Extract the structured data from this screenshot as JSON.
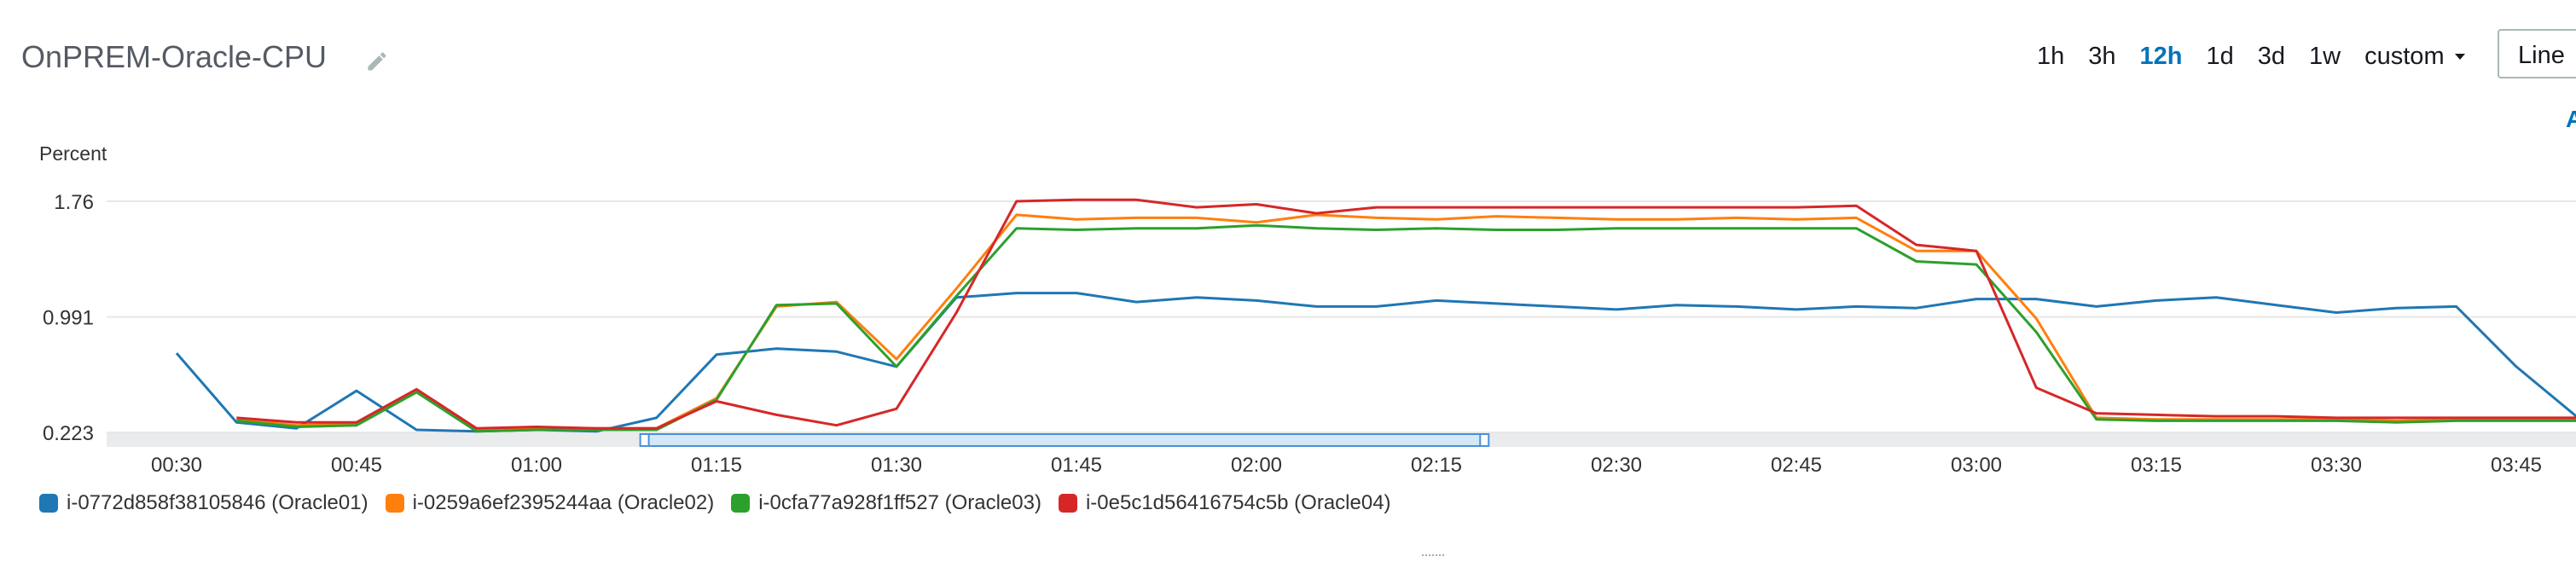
{
  "header": {
    "title": "OnPREM-Oracle-CPU",
    "time_ranges": [
      "1h",
      "3h",
      "12h",
      "1d",
      "3d",
      "1w"
    ],
    "active_range": "12h",
    "custom_label": "custom",
    "chart_type_label": "Line",
    "edge_letter": "A"
  },
  "colors": {
    "oracle01": "#1f77b4",
    "oracle02": "#ff7f0e",
    "oracle03": "#2ca02c",
    "oracle04": "#d62728",
    "accent": "#0073bb"
  },
  "chart_data": {
    "type": "line",
    "ylabel": "Percent",
    "yticks": [
      "1.76",
      "0.991",
      "0.223"
    ],
    "ylim": [
      0.223,
      1.76
    ],
    "x_tick_labels": [
      "00:30",
      "00:45",
      "01:00",
      "01:15",
      "01:30",
      "01:45",
      "02:00",
      "02:15",
      "02:30",
      "02:45",
      "03:00",
      "03:15",
      "03:30",
      "03:45"
    ],
    "x_tick_minutes": [
      30,
      45,
      60,
      75,
      90,
      105,
      120,
      135,
      150,
      165,
      180,
      195,
      210,
      225
    ],
    "xlim_minutes": [
      30,
      230
    ],
    "grid": true,
    "legend_position": "bottom-left",
    "brush_minutes": [
      69,
      139
    ],
    "series": [
      {
        "name": "i-0772d858f38105846 (Oracle01)",
        "x": [
          30,
          35,
          40,
          45,
          50,
          55,
          60,
          65,
          70,
          75,
          80,
          85,
          90,
          95,
          100,
          105,
          110,
          115,
          120,
          125,
          130,
          135,
          140,
          145,
          150,
          155,
          160,
          165,
          170,
          175,
          180,
          185,
          190,
          195,
          200,
          205,
          210,
          215,
          220,
          225,
          230
        ],
        "values": [
          0.75,
          0.29,
          0.25,
          0.5,
          0.24,
          0.23,
          0.24,
          0.23,
          0.32,
          0.74,
          0.78,
          0.76,
          0.66,
          1.12,
          1.15,
          1.15,
          1.09,
          1.12,
          1.1,
          1.06,
          1.06,
          1.1,
          1.08,
          1.06,
          1.04,
          1.07,
          1.06,
          1.04,
          1.06,
          1.05,
          1.11,
          1.11,
          1.06,
          1.1,
          1.12,
          1.07,
          1.02,
          1.05,
          1.06,
          0.66,
          0.33
        ]
      },
      {
        "name": "i-0259a6ef2395244aa (Oracle02)",
        "x": [
          35,
          40,
          45,
          50,
          55,
          60,
          65,
          70,
          75,
          80,
          85,
          90,
          95,
          100,
          105,
          110,
          115,
          120,
          125,
          130,
          135,
          140,
          145,
          150,
          155,
          160,
          165,
          170,
          175,
          180,
          185,
          190,
          195,
          200,
          205,
          210,
          215,
          220,
          225,
          230
        ],
        "values": [
          0.31,
          0.27,
          0.28,
          0.5,
          0.24,
          0.25,
          0.25,
          0.25,
          0.45,
          1.06,
          1.09,
          0.71,
          1.18,
          1.67,
          1.64,
          1.65,
          1.65,
          1.62,
          1.67,
          1.65,
          1.64,
          1.66,
          1.65,
          1.64,
          1.64,
          1.65,
          1.64,
          1.65,
          1.43,
          1.43,
          0.98,
          0.32,
          0.31,
          0.31,
          0.31,
          0.31,
          0.3,
          0.31,
          0.31,
          0.31
        ]
      },
      {
        "name": "i-0cfa77a928f1ff527 (Oracle03)",
        "x": [
          35,
          40,
          45,
          50,
          55,
          60,
          65,
          70,
          75,
          80,
          85,
          90,
          95,
          100,
          105,
          110,
          115,
          120,
          125,
          130,
          135,
          140,
          145,
          150,
          155,
          160,
          165,
          170,
          175,
          180,
          185,
          190,
          195,
          200,
          205,
          210,
          215,
          220,
          225,
          230
        ],
        "values": [
          0.3,
          0.26,
          0.27,
          0.49,
          0.23,
          0.24,
          0.24,
          0.24,
          0.44,
          1.07,
          1.08,
          0.66,
          1.13,
          1.58,
          1.57,
          1.58,
          1.58,
          1.6,
          1.58,
          1.57,
          1.58,
          1.57,
          1.57,
          1.58,
          1.58,
          1.58,
          1.58,
          1.58,
          1.36,
          1.34,
          0.89,
          0.31,
          0.3,
          0.3,
          0.3,
          0.3,
          0.29,
          0.3,
          0.3,
          0.3
        ]
      },
      {
        "name": "i-0e5c1d56416754c5b (Oracle04)",
        "x": [
          35,
          40,
          45,
          50,
          55,
          60,
          65,
          70,
          75,
          80,
          85,
          90,
          95,
          100,
          105,
          110,
          115,
          120,
          125,
          130,
          135,
          140,
          145,
          150,
          155,
          160,
          165,
          170,
          175,
          180,
          185,
          190,
          195,
          200,
          205,
          210,
          215,
          220,
          225,
          230
        ],
        "values": [
          0.32,
          0.29,
          0.29,
          0.51,
          0.25,
          0.26,
          0.25,
          0.25,
          0.43,
          0.34,
          0.27,
          0.38,
          1.02,
          1.76,
          1.77,
          1.77,
          1.72,
          1.74,
          1.68,
          1.72,
          1.72,
          1.72,
          1.72,
          1.72,
          1.72,
          1.72,
          1.72,
          1.73,
          1.47,
          1.43,
          0.52,
          0.35,
          0.34,
          0.33,
          0.33,
          0.32,
          0.32,
          0.32,
          0.32,
          0.32
        ]
      }
    ]
  }
}
